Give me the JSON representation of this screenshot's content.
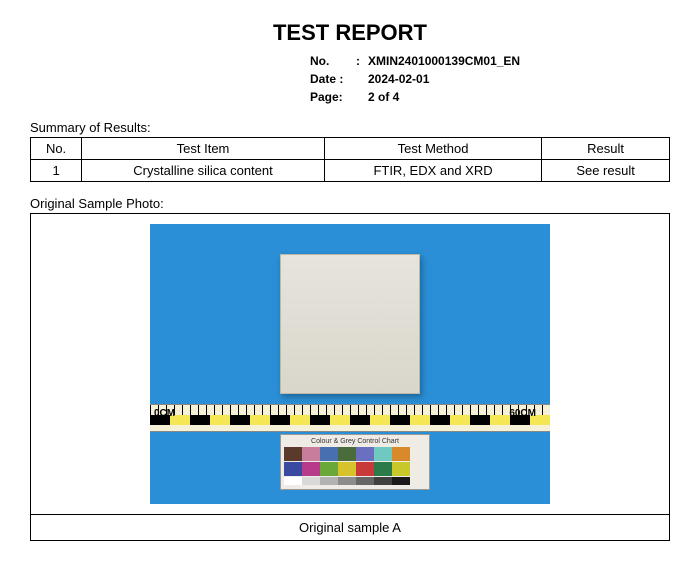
{
  "title": "TEST REPORT",
  "meta": {
    "no_key": "No.",
    "no_val": "XMIN2401000139CM01_EN",
    "date_key": "Date :",
    "date_val": "2024-02-01",
    "page_key": "Page:",
    "page_val": "2 of  4"
  },
  "summary_label": "Summary of Results:",
  "table": {
    "headers": {
      "no": "No.",
      "item": "Test Item",
      "method": "Test Method",
      "result": "Result"
    },
    "rows": [
      {
        "no": "1",
        "item": "Crystalline silica content",
        "method": "FTIR, EDX and XRD",
        "result": "See result"
      }
    ]
  },
  "photo_label": "Original Sample Photo:",
  "photo": {
    "caption": "Original sample A",
    "ruler_left": "0CM",
    "ruler_right": "60CM",
    "chart_title": "Colour & Grey Control Chart",
    "swatch_colors_row1": [
      "#5a3a2a",
      "#c97d9d",
      "#4870b0",
      "#4a6b3a",
      "#6a6fc0",
      "#6fc9c0",
      "#d88a2a"
    ],
    "swatch_colors_row2": [
      "#3a4aa0",
      "#b83a8a",
      "#6aa83a",
      "#d6c22a",
      "#c83a3a",
      "#2a7a4a",
      "#c8c82a"
    ],
    "gray_steps": [
      "#ffffff",
      "#d9d9d9",
      "#b3b3b3",
      "#8c8c8c",
      "#666666",
      "#404040",
      "#1a1a1a"
    ],
    "background_color": "#2a8fd6",
    "tile_color": "#e0ddd2"
  }
}
